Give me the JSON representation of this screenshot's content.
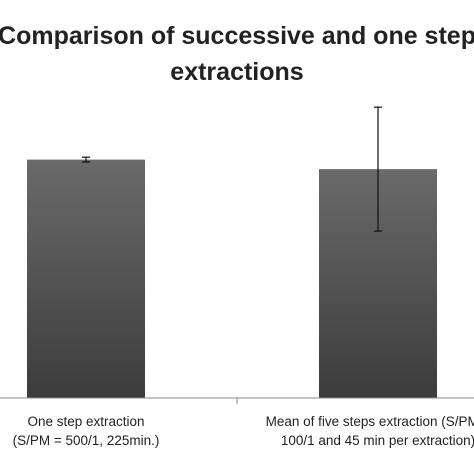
{
  "chart_data": {
    "type": "bar",
    "title_lines": [
      "Comparison of successive and one step",
      "extractions"
    ],
    "categories": [
      [
        "One step extraction",
        "(S/PM = 500/1, 225min.)"
      ],
      [
        "Mean of five steps extraction (S/PM =",
        "100/1 and 45 min per extraction)"
      ]
    ],
    "values": [
      100,
      96
    ],
    "errors": [
      1,
      26
    ],
    "ylim": [
      0,
      125
    ],
    "xlabel": "",
    "ylabel": "",
    "grid": false,
    "legend": "none",
    "colors": {
      "bar_top": "#6a6a6a",
      "bar_bottom": "#3c3c3c"
    }
  }
}
